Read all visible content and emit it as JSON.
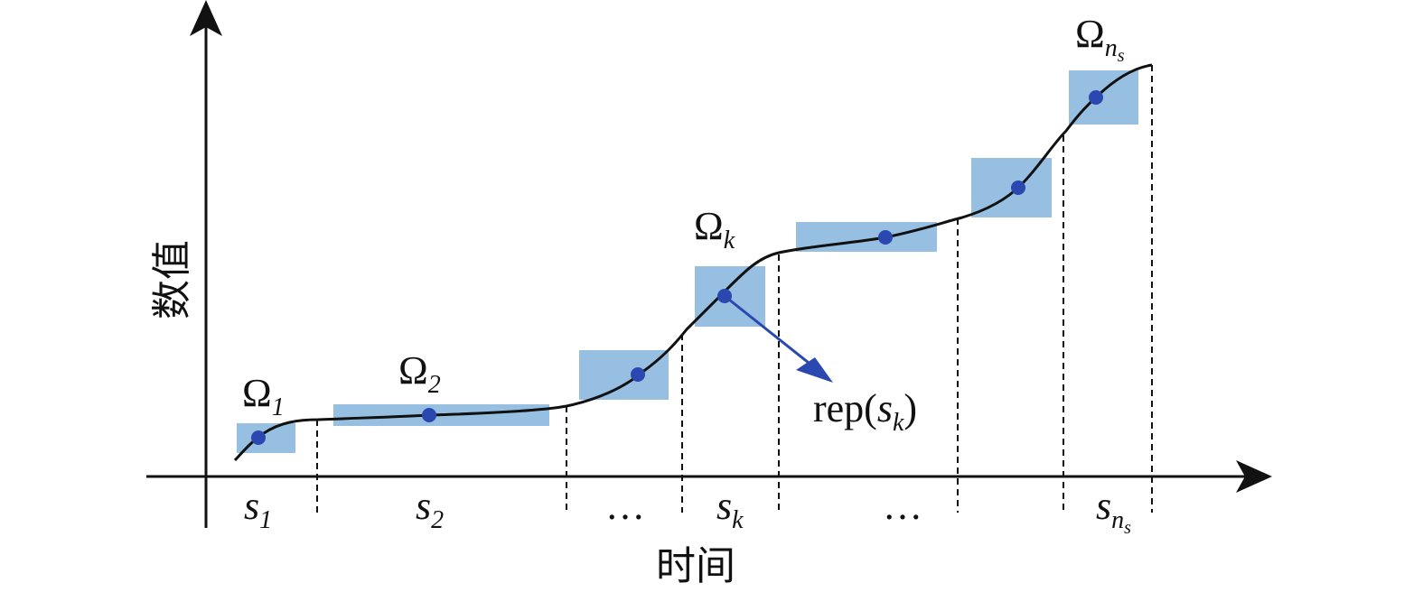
{
  "y_axis_label": "数值",
  "x_axis_label": "时间",
  "regions": [
    {
      "symbol": "Ω",
      "subscript": "1"
    },
    {
      "symbol": "Ω",
      "subscript": "2"
    },
    {
      "symbol": "Ω",
      "subscript": "k"
    },
    {
      "symbol": "Ω",
      "subscript": "n",
      "subsubscript": "s"
    }
  ],
  "segments": [
    {
      "symbol": "s",
      "subscript": "1"
    },
    {
      "symbol": "s",
      "subscript": "2"
    },
    {
      "text": "…"
    },
    {
      "symbol": "s",
      "subscript": "k"
    },
    {
      "text": "…"
    },
    {
      "symbol": "s",
      "subscript": "n",
      "subsubscript": "s"
    }
  ],
  "representative": {
    "prefix": "rep(",
    "symbol": "s",
    "subscript": "k",
    "suffix": ")"
  }
}
